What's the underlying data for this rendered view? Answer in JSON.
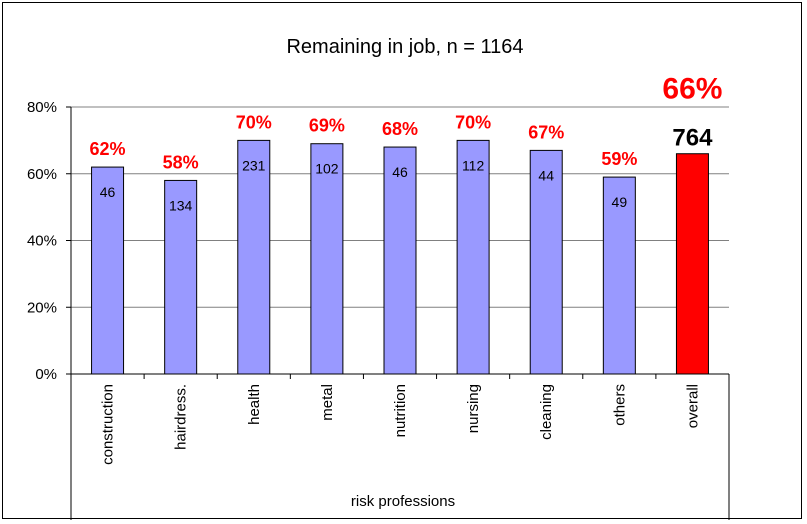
{
  "chart_data": {
    "type": "bar",
    "title": "Remaining in job, n = 1164",
    "xlabel": "risk professions",
    "ylabel": "",
    "ylim": [
      0,
      80
    ],
    "yticks": [
      "0%",
      "20%",
      "40%",
      "60%",
      "80%"
    ],
    "grid": true,
    "legend": "none",
    "categories": [
      "construction",
      "hairdress.",
      "health",
      "metal",
      "nutrition",
      "nursing",
      "cleaning",
      "others",
      "overall"
    ],
    "values": [
      62,
      58,
      70,
      69,
      68,
      70,
      67,
      59,
      66
    ],
    "percent_labels": [
      "62%",
      "58%",
      "70%",
      "69%",
      "68%",
      "70%",
      "67%",
      "59%",
      "66%"
    ],
    "count_labels": [
      "46",
      "134",
      "231",
      "102",
      "46",
      "112",
      "44",
      "49",
      "764"
    ],
    "colors": {
      "bar": "#9999ff",
      "highlight_bar": "#ff0000",
      "percent_label": "#ff0000",
      "count_label": "#000000",
      "gridline": "#808080"
    }
  }
}
